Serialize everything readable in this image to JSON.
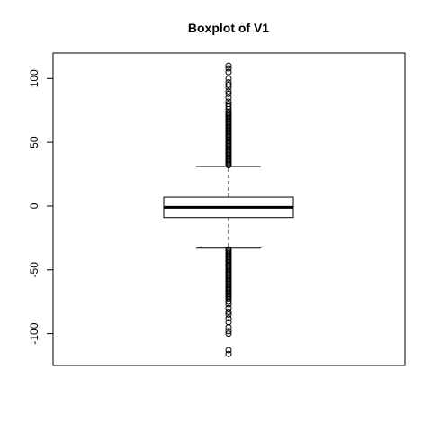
{
  "chart_data": {
    "type": "boxplot",
    "title": "Boxplot of V1",
    "xlabel": "",
    "ylabel": "",
    "ylim": [
      -125,
      120
    ],
    "y_ticks": [
      {
        "value": -100,
        "label": "-100"
      },
      {
        "value": -50,
        "label": "-50"
      },
      {
        "value": 0,
        "label": "0"
      },
      {
        "value": 50,
        "label": "50"
      },
      {
        "value": 100,
        "label": "100"
      }
    ],
    "grid": false,
    "legend": "none",
    "series": [
      {
        "stats": {
          "whisker_low": -33,
          "q1": -9,
          "median": -1,
          "q3": 7,
          "whisker_high": 31
        },
        "outliers_high": [
          32,
          33,
          34,
          35,
          36,
          37,
          38,
          39,
          40,
          41,
          42,
          43,
          44,
          45,
          46,
          47,
          48,
          49,
          50,
          51,
          52,
          53,
          54,
          55,
          56,
          57,
          58,
          59,
          60,
          61,
          62,
          63,
          64,
          65,
          66,
          67,
          68,
          69,
          70,
          71,
          72,
          73,
          74,
          76,
          78,
          80,
          82,
          85,
          88,
          90,
          93,
          95,
          97,
          100,
          105,
          108,
          110
        ],
        "outliers_low": [
          -34,
          -35,
          -36,
          -37,
          -38,
          -39,
          -40,
          -41,
          -42,
          -43,
          -44,
          -45,
          -46,
          -47,
          -48,
          -49,
          -50,
          -51,
          -52,
          -53,
          -54,
          -55,
          -56,
          -57,
          -58,
          -59,
          -60,
          -61,
          -62,
          -63,
          -64,
          -65,
          -66,
          -67,
          -68,
          -69,
          -70,
          -71,
          -72,
          -73,
          -75,
          -77,
          -80,
          -83,
          -85,
          -88,
          -91,
          -95,
          -98,
          -100,
          -113,
          -116
        ]
      }
    ],
    "colors": {
      "stroke": "#000000",
      "background": "#ffffff"
    }
  }
}
